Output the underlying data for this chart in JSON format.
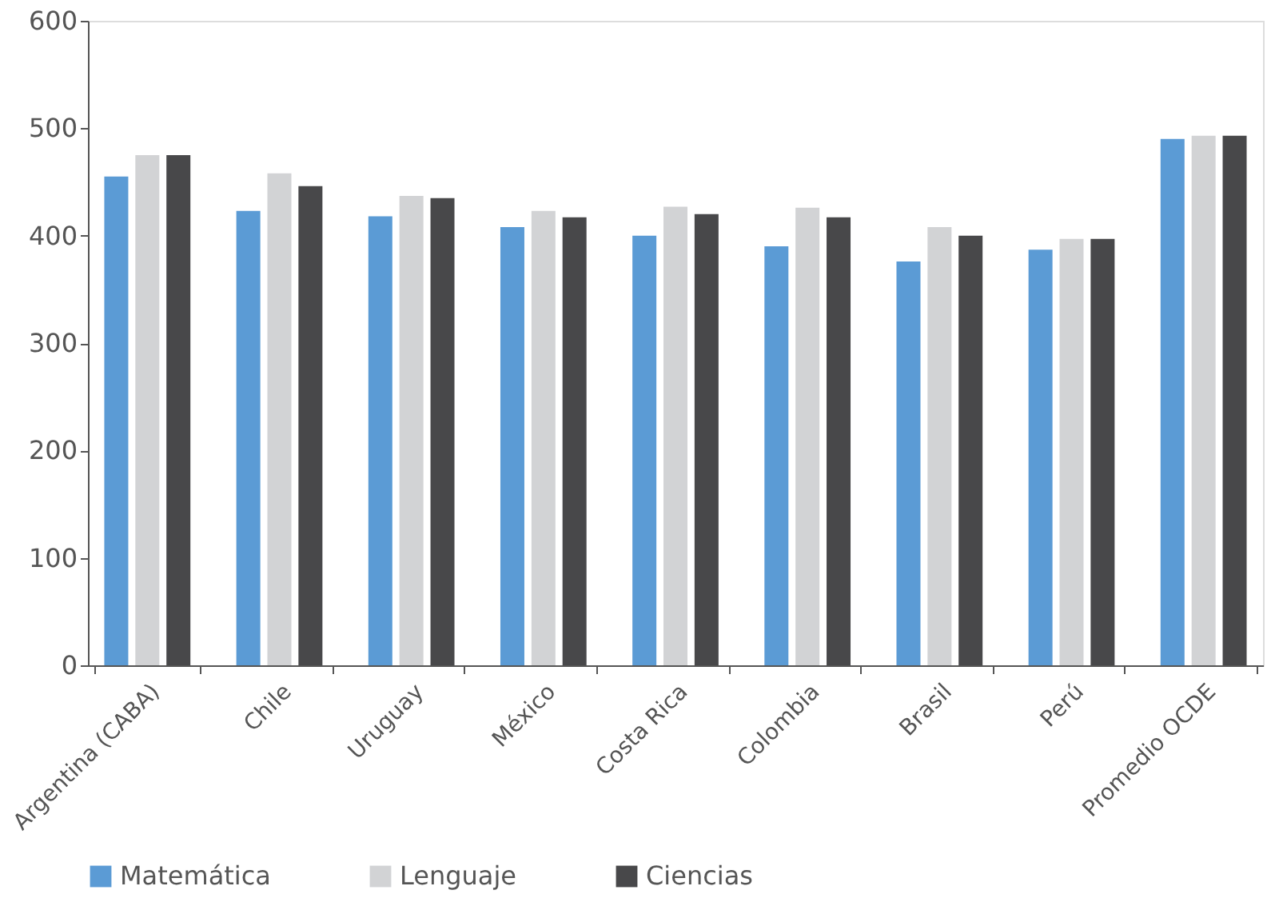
{
  "chart_data": {
    "type": "bar",
    "categories": [
      "Argentina (CABA)",
      "Chile",
      "Uruguay",
      "México",
      "Costa Rica",
      "Colombia",
      "Brasil",
      "Perú",
      "Promedio OCDE"
    ],
    "series": [
      {
        "name": "Matemática",
        "color": "#5b9bd5",
        "values": [
          455,
          423,
          418,
          408,
          400,
          390,
          376,
          387,
          490
        ]
      },
      {
        "name": "Lenguaje",
        "color": "#d2d3d5",
        "values": [
          475,
          458,
          437,
          423,
          427,
          426,
          408,
          397,
          493
        ]
      },
      {
        "name": "Ciencias",
        "color": "#48484a",
        "values": [
          475,
          446,
          435,
          417,
          420,
          417,
          400,
          397,
          493
        ]
      }
    ],
    "ylim": [
      0,
      600
    ],
    "yticks": [
      0,
      100,
      200,
      300,
      400,
      500,
      600
    ],
    "grid": false,
    "legend": "bottom"
  }
}
